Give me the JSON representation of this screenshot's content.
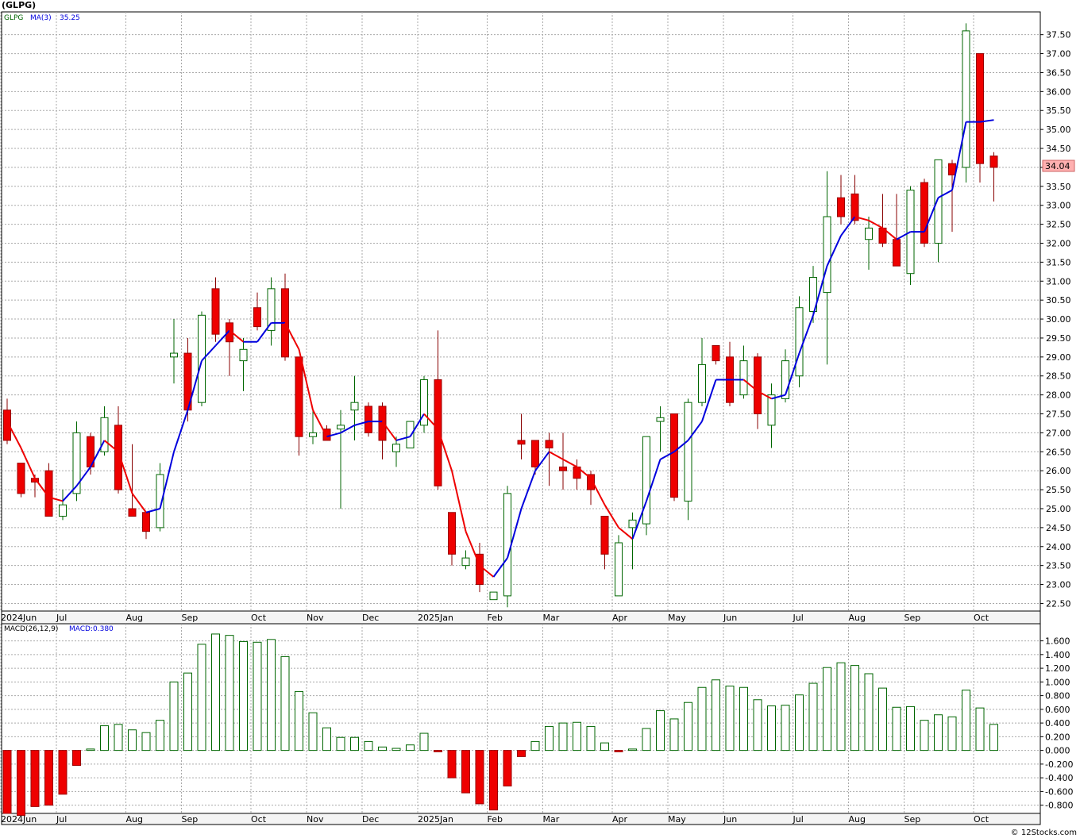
{
  "title": "(GLPG)",
  "footer": "© 12Stocks.com",
  "colors": {
    "up_body": "#ffffff",
    "up_outline": "#006600",
    "down_body": "#ee0000",
    "ma_up": "#0000dd",
    "ma_down": "#ee0000",
    "grid": "#aaaaaa",
    "last_price_bg": "#ffb0b0"
  },
  "chart_data": [
    {
      "type": "candlestick",
      "legend": [
        "GLPG",
        "MA(3)",
        "35.25"
      ],
      "ylim": [
        22.3,
        38.1
      ],
      "y_ticks": [
        "22.50",
        "23.00",
        "23.50",
        "24.00",
        "24.50",
        "25.00",
        "25.50",
        "26.00",
        "26.50",
        "27.00",
        "27.50",
        "28.00",
        "28.50",
        "29.00",
        "29.50",
        "30.00",
        "30.50",
        "31.00",
        "31.50",
        "32.00",
        "32.50",
        "33.00",
        "33.50",
        "34.00",
        "34.50",
        "35.00",
        "35.50",
        "36.00",
        "36.50",
        "37.00",
        "37.50"
      ],
      "x_labels": [
        {
          "label": "2024Jun",
          "index": 0
        },
        {
          "label": "Jul",
          "index": 4
        },
        {
          "label": "Aug",
          "index": 9
        },
        {
          "label": "Sep",
          "index": 13
        },
        {
          "label": "Oct",
          "index": 18
        },
        {
          "label": "Nov",
          "index": 22
        },
        {
          "label": "Dec",
          "index": 26
        },
        {
          "label": "2025Jan",
          "index": 30
        },
        {
          "label": "Feb",
          "index": 35
        },
        {
          "label": "Mar",
          "index": 39
        },
        {
          "label": "Apr",
          "index": 44
        },
        {
          "label": "May",
          "index": 48
        },
        {
          "label": "Jun",
          "index": 52
        },
        {
          "label": "Jul",
          "index": 57
        },
        {
          "label": "Aug",
          "index": 61
        },
        {
          "label": "Sep",
          "index": 65
        },
        {
          "label": "Oct",
          "index": 70
        }
      ],
      "last_price": "34.04",
      "ohlc": [
        {
          "o": 27.6,
          "h": 27.9,
          "l": 26.7,
          "c": 26.8
        },
        {
          "o": 26.2,
          "h": 26.2,
          "l": 25.3,
          "c": 25.4
        },
        {
          "o": 25.8,
          "h": 25.9,
          "l": 25.3,
          "c": 25.7
        },
        {
          "o": 26.0,
          "h": 26.2,
          "l": 24.8,
          "c": 24.8
        },
        {
          "o": 24.8,
          "h": 25.5,
          "l": 24.7,
          "c": 25.1
        },
        {
          "o": 25.4,
          "h": 27.3,
          "l": 25.2,
          "c": 27.0
        },
        {
          "o": 26.9,
          "h": 27.0,
          "l": 25.9,
          "c": 26.1
        },
        {
          "o": 26.5,
          "h": 27.7,
          "l": 26.4,
          "c": 27.4
        },
        {
          "o": 27.2,
          "h": 27.7,
          "l": 25.4,
          "c": 25.5
        },
        {
          "o": 25.0,
          "h": 26.7,
          "l": 24.9,
          "c": 24.8
        },
        {
          "o": 24.9,
          "h": 24.9,
          "l": 24.2,
          "c": 24.4
        },
        {
          "o": 24.5,
          "h": 26.2,
          "l": 24.4,
          "c": 25.9
        },
        {
          "o": 29.0,
          "h": 30.0,
          "l": 28.3,
          "c": 29.1
        },
        {
          "o": 29.1,
          "h": 29.5,
          "l": 27.3,
          "c": 27.6
        },
        {
          "o": 27.8,
          "h": 30.2,
          "l": 27.7,
          "c": 30.1
        },
        {
          "o": 30.8,
          "h": 31.1,
          "l": 29.4,
          "c": 29.6
        },
        {
          "o": 29.9,
          "h": 30.0,
          "l": 28.5,
          "c": 29.4
        },
        {
          "o": 28.9,
          "h": 29.5,
          "l": 28.1,
          "c": 29.2
        },
        {
          "o": 30.3,
          "h": 30.7,
          "l": 29.7,
          "c": 29.8
        },
        {
          "o": 29.7,
          "h": 31.1,
          "l": 29.3,
          "c": 30.8
        },
        {
          "o": 30.8,
          "h": 31.2,
          "l": 28.9,
          "c": 29.0
        },
        {
          "o": 29.0,
          "h": 29.0,
          "l": 26.4,
          "c": 26.9
        },
        {
          "o": 26.9,
          "h": 27.6,
          "l": 26.7,
          "c": 27.0
        },
        {
          "o": 27.1,
          "h": 27.2,
          "l": 26.8,
          "c": 26.8
        },
        {
          "o": 27.1,
          "h": 27.6,
          "l": 25.0,
          "c": 27.2
        },
        {
          "o": 27.6,
          "h": 28.5,
          "l": 26.8,
          "c": 27.8
        },
        {
          "o": 27.7,
          "h": 27.8,
          "l": 26.9,
          "c": 27.0
        },
        {
          "o": 27.7,
          "h": 27.8,
          "l": 26.3,
          "c": 26.8
        },
        {
          "o": 26.5,
          "h": 26.9,
          "l": 26.1,
          "c": 26.7
        },
        {
          "o": 26.6,
          "h": 27.3,
          "l": 26.6,
          "c": 27.3
        },
        {
          "o": 27.2,
          "h": 28.5,
          "l": 27.0,
          "c": 28.4
        },
        {
          "o": 28.4,
          "h": 29.7,
          "l": 25.5,
          "c": 25.6
        },
        {
          "o": 24.9,
          "h": 24.9,
          "l": 23.5,
          "c": 23.8
        },
        {
          "o": 23.5,
          "h": 23.9,
          "l": 23.4,
          "c": 23.7
        },
        {
          "o": 23.8,
          "h": 24.1,
          "l": 22.8,
          "c": 23.0
        },
        {
          "o": 22.6,
          "h": 22.8,
          "l": 22.6,
          "c": 22.8
        },
        {
          "o": 22.7,
          "h": 25.6,
          "l": 22.4,
          "c": 25.4
        },
        {
          "o": 26.8,
          "h": 27.5,
          "l": 26.3,
          "c": 26.7
        },
        {
          "o": 26.8,
          "h": 26.8,
          "l": 25.9,
          "c": 26.1
        },
        {
          "o": 26.8,
          "h": 27.0,
          "l": 25.6,
          "c": 26.6
        },
        {
          "o": 26.1,
          "h": 27.0,
          "l": 25.5,
          "c": 26.0
        },
        {
          "o": 26.1,
          "h": 26.3,
          "l": 25.5,
          "c": 25.8
        },
        {
          "o": 25.9,
          "h": 26.0,
          "l": 25.1,
          "c": 25.5
        },
        {
          "o": 24.8,
          "h": 24.8,
          "l": 23.4,
          "c": 23.8
        },
        {
          "o": 22.7,
          "h": 24.3,
          "l": 22.7,
          "c": 24.1
        },
        {
          "o": 24.5,
          "h": 24.9,
          "l": 23.4,
          "c": 24.7
        },
        {
          "o": 24.6,
          "h": 26.9,
          "l": 24.3,
          "c": 26.9
        },
        {
          "o": 27.3,
          "h": 27.7,
          "l": 26.5,
          "c": 27.4
        },
        {
          "o": 27.5,
          "h": 27.5,
          "l": 25.2,
          "c": 25.3
        },
        {
          "o": 25.2,
          "h": 27.9,
          "l": 24.7,
          "c": 27.8
        },
        {
          "o": 27.8,
          "h": 29.5,
          "l": 27.7,
          "c": 28.8
        },
        {
          "o": 29.3,
          "h": 29.3,
          "l": 28.8,
          "c": 28.9
        },
        {
          "o": 29.0,
          "h": 29.4,
          "l": 27.7,
          "c": 27.8
        },
        {
          "o": 28.0,
          "h": 29.3,
          "l": 27.9,
          "c": 28.9
        },
        {
          "o": 29.0,
          "h": 29.1,
          "l": 27.1,
          "c": 27.5
        },
        {
          "o": 27.2,
          "h": 28.3,
          "l": 26.6,
          "c": 28.0
        },
        {
          "o": 27.9,
          "h": 29.2,
          "l": 27.8,
          "c": 28.9
        },
        {
          "o": 28.5,
          "h": 30.6,
          "l": 28.2,
          "c": 30.3
        },
        {
          "o": 30.2,
          "h": 31.4,
          "l": 29.9,
          "c": 31.1
        },
        {
          "o": 30.7,
          "h": 33.9,
          "l": 28.8,
          "c": 32.7
        },
        {
          "o": 33.2,
          "h": 33.8,
          "l": 32.5,
          "c": 32.7
        },
        {
          "o": 33.3,
          "h": 33.8,
          "l": 32.5,
          "c": 32.6
        },
        {
          "o": 32.1,
          "h": 32.7,
          "l": 31.3,
          "c": 32.4
        },
        {
          "o": 32.4,
          "h": 33.3,
          "l": 31.9,
          "c": 32.0
        },
        {
          "o": 32.1,
          "h": 33.3,
          "l": 31.4,
          "c": 31.4
        },
        {
          "o": 31.2,
          "h": 33.5,
          "l": 30.9,
          "c": 33.4
        },
        {
          "o": 33.6,
          "h": 33.7,
          "l": 31.9,
          "c": 32.0
        },
        {
          "o": 32.0,
          "h": 34.2,
          "l": 31.5,
          "c": 34.2
        },
        {
          "o": 34.1,
          "h": 34.2,
          "l": 32.3,
          "c": 33.8
        },
        {
          "o": 34.0,
          "h": 37.8,
          "l": 33.6,
          "c": 37.6
        },
        {
          "o": 37.0,
          "h": 37.0,
          "l": 33.6,
          "c": 34.1
        },
        {
          "o": 34.3,
          "h": 34.4,
          "l": 33.1,
          "c": 34.0
        }
      ],
      "ma3": [
        27.3,
        26.6,
        25.8,
        25.3,
        25.2,
        25.6,
        26.1,
        26.8,
        26.5,
        25.4,
        24.9,
        25.0,
        26.5,
        27.6,
        28.9,
        29.3,
        29.7,
        29.4,
        29.4,
        29.9,
        29.9,
        29.2,
        27.6,
        26.9,
        27.0,
        27.2,
        27.3,
        27.3,
        26.8,
        26.9,
        27.5,
        27.1,
        26.0,
        24.4,
        23.5,
        23.2,
        23.7,
        25.0,
        26.0,
        26.5,
        26.3,
        26.1,
        25.8,
        25.1,
        24.5,
        24.2,
        25.2,
        26.3,
        26.5,
        26.8,
        27.3,
        28.4,
        28.4,
        28.4,
        28.1,
        27.9,
        28.0,
        29.1,
        30.1,
        31.4,
        32.2,
        32.7,
        32.6,
        32.4,
        32.1,
        32.3,
        32.3,
        33.2,
        33.4,
        35.2,
        35.2,
        35.25
      ]
    },
    {
      "type": "bar",
      "legend": [
        "MACD(26,12,9)",
        "MACD:0.380"
      ],
      "ylim": [
        -0.92,
        1.85
      ],
      "y_ticks": [
        "-0.800",
        "-0.600",
        "-0.400",
        "-0.200",
        "0.000",
        "0.200",
        "0.400",
        "0.600",
        "0.800",
        "1.000",
        "1.200",
        "1.400",
        "1.600"
      ],
      "values": [
        -0.92,
        -0.95,
        -0.82,
        -0.8,
        -0.64,
        -0.22,
        0.02,
        0.36,
        0.38,
        0.3,
        0.26,
        0.44,
        1.0,
        1.13,
        1.55,
        1.7,
        1.68,
        1.59,
        1.58,
        1.62,
        1.37,
        0.86,
        0.55,
        0.33,
        0.19,
        0.19,
        0.13,
        0.05,
        0.03,
        0.08,
        0.25,
        -0.02,
        -0.4,
        -0.62,
        -0.78,
        -0.87,
        -0.52,
        -0.09,
        0.13,
        0.35,
        0.4,
        0.41,
        0.35,
        0.11,
        -0.02,
        0.02,
        0.32,
        0.58,
        0.46,
        0.7,
        0.92,
        1.03,
        0.94,
        0.92,
        0.74,
        0.65,
        0.66,
        0.81,
        0.98,
        1.21,
        1.28,
        1.24,
        1.12,
        0.91,
        0.63,
        0.64,
        0.44,
        0.52,
        0.49,
        0.88,
        0.62,
        0.38
      ]
    }
  ]
}
